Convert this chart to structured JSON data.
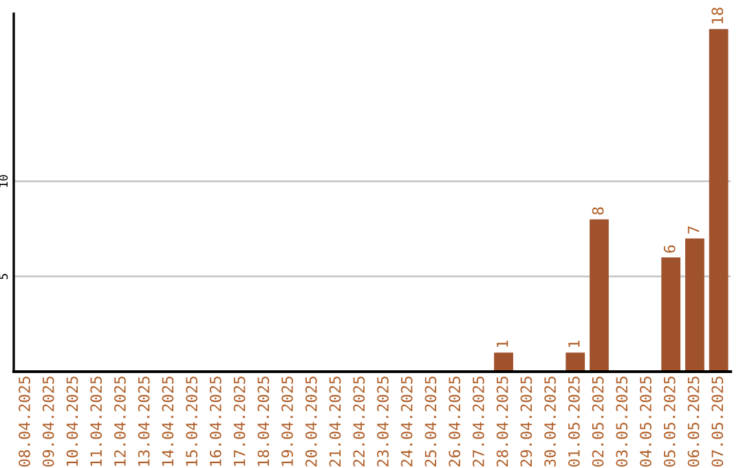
{
  "chart_data": {
    "type": "bar",
    "categories": [
      "08.04.2025",
      "09.04.2025",
      "10.04.2025",
      "11.04.2025",
      "12.04.2025",
      "13.04.2025",
      "14.04.2025",
      "15.04.2025",
      "16.04.2025",
      "17.04.2025",
      "18.04.2025",
      "19.04.2025",
      "20.04.2025",
      "21.04.2025",
      "22.04.2025",
      "23.04.2025",
      "24.04.2025",
      "25.04.2025",
      "26.04.2025",
      "27.04.2025",
      "28.04.2025",
      "29.04.2025",
      "30.04.2025",
      "01.05.2025",
      "02.05.2025",
      "03.05.2025",
      "04.05.2025",
      "05.05.2025",
      "06.05.2025",
      "07.05.2025"
    ],
    "values": [
      0,
      0,
      0,
      0,
      0,
      0,
      0,
      0,
      0,
      0,
      0,
      0,
      0,
      0,
      0,
      0,
      0,
      0,
      0,
      0,
      1,
      0,
      0,
      1,
      8,
      0,
      0,
      6,
      7,
      18
    ],
    "value_labels": [
      null,
      null,
      null,
      null,
      null,
      null,
      null,
      null,
      null,
      null,
      null,
      null,
      null,
      null,
      null,
      null,
      null,
      null,
      null,
      null,
      "1",
      null,
      null,
      "1",
      "8",
      null,
      null,
      "6",
      "7",
      "18"
    ],
    "color": "#a0522d",
    "ylim": [
      0,
      18.8
    ],
    "yticks": [
      5,
      10
    ],
    "grid": "y"
  }
}
